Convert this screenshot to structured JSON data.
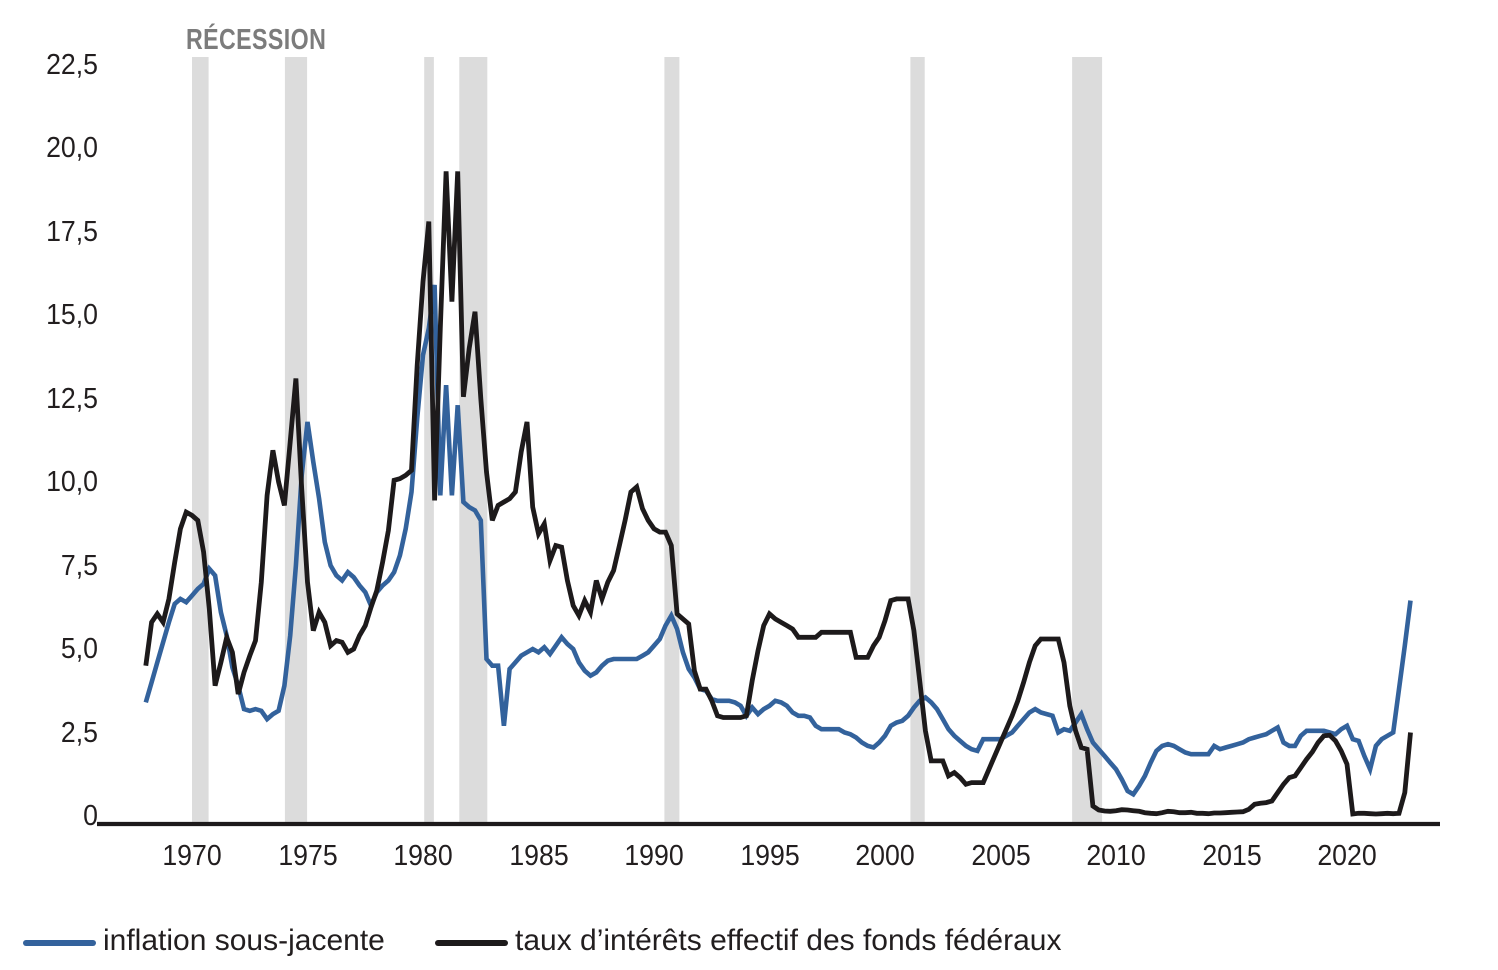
{
  "chart_data": {
    "type": "line",
    "recession_label": "RÉCESSION",
    "y_ticks": [
      {
        "value": 0,
        "label": "0"
      },
      {
        "value": 2.5,
        "label": "2,5"
      },
      {
        "value": 5,
        "label": "5,0"
      },
      {
        "value": 7.5,
        "label": "7,5"
      },
      {
        "value": 10,
        "label": "10,0"
      },
      {
        "value": 12.5,
        "label": "12,5"
      },
      {
        "value": 15,
        "label": "15,0"
      },
      {
        "value": 17.5,
        "label": "17,5"
      },
      {
        "value": 20,
        "label": "20,0"
      },
      {
        "value": 22.5,
        "label": "22,5"
      }
    ],
    "x_ticks": [
      {
        "year": 1970,
        "label": "1970"
      },
      {
        "year": 1975,
        "label": "1975"
      },
      {
        "year": 1980,
        "label": "1980"
      },
      {
        "year": 1985,
        "label": "1985"
      },
      {
        "year": 1990,
        "label": "1990"
      },
      {
        "year": 1995,
        "label": "1995"
      },
      {
        "year": 2000,
        "label": "2000"
      },
      {
        "year": 2005,
        "label": "2005"
      },
      {
        "year": 2010,
        "label": "2010"
      },
      {
        "year": 2015,
        "label": "2015"
      },
      {
        "year": 2020,
        "label": "2020"
      }
    ],
    "axis_range": {
      "x_min": 1968,
      "x_max": 2022.75,
      "y_min": 0,
      "y_max": 22.5
    },
    "recessions": [
      {
        "from": 1970.0,
        "to": 1970.72
      },
      {
        "from": 1974.02,
        "to": 1974.98
      },
      {
        "from": 1980.05,
        "to": 1980.47
      },
      {
        "from": 1981.57,
        "to": 1982.78
      },
      {
        "from": 1990.45,
        "to": 1991.1
      },
      {
        "from": 2001.1,
        "to": 2001.72
      },
      {
        "from": 2008.1,
        "to": 2009.4
      }
    ],
    "styles": {
      "recession_fill": "#dcdcdc",
      "axis_color": "#1d1a1b",
      "tick_color": "#221e1f",
      "recession_label_color": "#7c7c7c",
      "background": "#ffffff"
    },
    "series": [
      {
        "id": "core-inflation",
        "label": "inflation sous-jacente",
        "color": "#33629c",
        "stroke_width": 4.6,
        "start_year": 1968,
        "frequency": "quarterly",
        "values": [
          3.4,
          4.0,
          4.6,
          5.2,
          5.8,
          6.35,
          6.5,
          6.4,
          6.6,
          6.8,
          6.95,
          7.4,
          7.2,
          6.1,
          5.4,
          4.45,
          3.9,
          3.2,
          3.15,
          3.2,
          3.15,
          2.9,
          3.05,
          3.15,
          3.9,
          5.4,
          7.5,
          10.2,
          11.8,
          10.6,
          9.5,
          8.2,
          7.5,
          7.2,
          7.05,
          7.3,
          7.15,
          6.9,
          6.7,
          6.3,
          6.7,
          6.9,
          7.05,
          7.3,
          7.8,
          8.6,
          9.7,
          11.9,
          13.8,
          14.6,
          15.9,
          9.6,
          12.9,
          9.6,
          12.3,
          9.4,
          9.25,
          9.15,
          8.85,
          4.7,
          4.5,
          4.5,
          2.7,
          4.4,
          4.6,
          4.8,
          4.9,
          5.0,
          4.9,
          5.05,
          4.85,
          5.1,
          5.35,
          5.15,
          5.0,
          4.6,
          4.35,
          4.2,
          4.3,
          4.5,
          4.65,
          4.7,
          4.7,
          4.7,
          4.7,
          4.7,
          4.8,
          4.9,
          5.1,
          5.3,
          5.7,
          6.0,
          5.6,
          4.9,
          4.4,
          4.15,
          3.8,
          3.75,
          3.5,
          3.45,
          3.45,
          3.45,
          3.4,
          3.3,
          3.0,
          3.25,
          3.05,
          3.2,
          3.3,
          3.45,
          3.4,
          3.3,
          3.1,
          3.0,
          3.0,
          2.95,
          2.7,
          2.6,
          2.6,
          2.6,
          2.6,
          2.5,
          2.45,
          2.35,
          2.2,
          2.1,
          2.05,
          2.2,
          2.4,
          2.7,
          2.8,
          2.85,
          3.0,
          3.25,
          3.45,
          3.55,
          3.4,
          3.2,
          2.9,
          2.6,
          2.4,
          2.25,
          2.1,
          2.0,
          1.95,
          2.3,
          2.3,
          2.3,
          2.3,
          2.4,
          2.5,
          2.7,
          2.9,
          3.1,
          3.2,
          3.1,
          3.05,
          3.0,
          2.5,
          2.6,
          2.55,
          2.8,
          3.05,
          2.6,
          2.2,
          2.0,
          1.8,
          1.6,
          1.4,
          1.1,
          0.75,
          0.65,
          0.9,
          1.2,
          1.6,
          1.95,
          2.1,
          2.15,
          2.1,
          2.0,
          1.9,
          1.85,
          1.85,
          1.85,
          1.85,
          2.1,
          2.0,
          2.05,
          2.1,
          2.15,
          2.2,
          2.3,
          2.35,
          2.4,
          2.45,
          2.55,
          2.65,
          2.2,
          2.1,
          2.1,
          2.4,
          2.55,
          2.55,
          2.55,
          2.55,
          2.5,
          2.45,
          2.6,
          2.7,
          2.3,
          2.25,
          1.8,
          1.4,
          2.1,
          2.3,
          2.4,
          2.5,
          3.8,
          5.1,
          6.45
        ]
      },
      {
        "id": "fed-funds",
        "label": "taux d’intérêts effectif des fonds fédéraux",
        "color": "#1d1a1b",
        "stroke_width": 4.8,
        "start_year": 1968,
        "frequency": "quarterly",
        "values": [
          4.5,
          5.8,
          6.05,
          5.8,
          6.5,
          7.6,
          8.6,
          9.1,
          9.0,
          8.85,
          7.9,
          6.2,
          3.9,
          4.6,
          5.35,
          4.9,
          3.65,
          4.3,
          4.8,
          5.25,
          7.0,
          9.6,
          10.95,
          10.0,
          9.3,
          11.2,
          13.1,
          9.8,
          7.0,
          5.55,
          6.1,
          5.8,
          5.1,
          5.25,
          5.2,
          4.9,
          5.0,
          5.4,
          5.7,
          6.25,
          6.75,
          7.6,
          8.55,
          10.05,
          10.1,
          10.2,
          10.35,
          13.5,
          16.0,
          17.8,
          9.45,
          14.6,
          19.3,
          15.4,
          19.3,
          12.55,
          14.0,
          15.1,
          12.5,
          10.3,
          8.85,
          9.3,
          9.4,
          9.5,
          9.7,
          10.9,
          11.8,
          9.25,
          8.45,
          8.75,
          7.65,
          8.1,
          8.05,
          7.05,
          6.3,
          6.0,
          6.45,
          6.1,
          7.05,
          6.5,
          7.0,
          7.35,
          8.1,
          8.85,
          9.7,
          9.85,
          9.2,
          8.85,
          8.6,
          8.5,
          8.5,
          8.1,
          6.05,
          5.9,
          5.75,
          4.35,
          3.8,
          3.8,
          3.45,
          3.0,
          2.95,
          2.95,
          2.95,
          2.95,
          3.0,
          4.05,
          4.95,
          5.7,
          6.05,
          5.9,
          5.8,
          5.7,
          5.6,
          5.35,
          5.35,
          5.35,
          5.35,
          5.5,
          5.5,
          5.5,
          5.5,
          5.5,
          5.5,
          4.75,
          4.75,
          4.75,
          5.1,
          5.35,
          5.85,
          6.45,
          6.5,
          6.5,
          6.5,
          5.55,
          4.05,
          2.55,
          1.65,
          1.65,
          1.65,
          1.2,
          1.3,
          1.15,
          0.95,
          1.0,
          1.0,
          1.0,
          1.4,
          1.8,
          2.2,
          2.6,
          3.0,
          3.45,
          4.0,
          4.6,
          5.1,
          5.3,
          5.3,
          5.3,
          5.3,
          4.6,
          3.3,
          2.55,
          2.05,
          2.0,
          0.3,
          0.18,
          0.15,
          0.14,
          0.16,
          0.19,
          0.18,
          0.16,
          0.14,
          0.1,
          0.08,
          0.07,
          0.1,
          0.14,
          0.13,
          0.1,
          0.1,
          0.11,
          0.08,
          0.08,
          0.07,
          0.09,
          0.09,
          0.1,
          0.11,
          0.12,
          0.13,
          0.2,
          0.35,
          0.38,
          0.4,
          0.45,
          0.7,
          0.95,
          1.15,
          1.2,
          1.45,
          1.7,
          1.92,
          2.2,
          2.4,
          2.42,
          2.25,
          1.95,
          1.55,
          0.06,
          0.08,
          0.08,
          0.07,
          0.06,
          0.07,
          0.08,
          0.07,
          0.08,
          0.7,
          2.5
        ]
      }
    ]
  }
}
